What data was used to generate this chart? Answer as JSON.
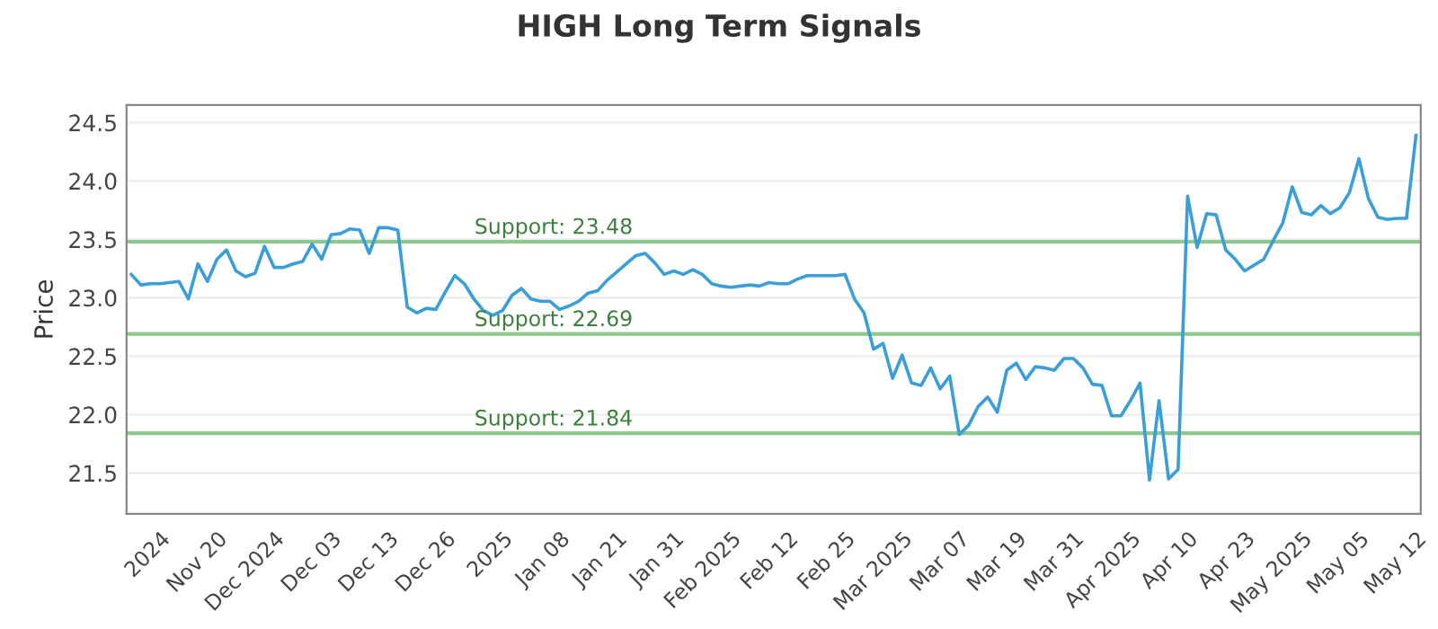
{
  "chart_data": {
    "type": "line",
    "title": "HIGH Long Term Signals",
    "ylabel": "Price",
    "categories": [
      null,
      null,
      null,
      "2024",
      null,
      null,
      null,
      null,
      null,
      "Nov 20",
      null,
      null,
      null,
      null,
      null,
      "Dec 2024",
      null,
      null,
      null,
      null,
      null,
      "Dec 03",
      null,
      null,
      null,
      null,
      null,
      "Dec 13",
      null,
      null,
      null,
      null,
      null,
      "Dec 26",
      null,
      null,
      null,
      null,
      null,
      "2025",
      null,
      null,
      null,
      null,
      null,
      "Jan 08",
      null,
      null,
      null,
      null,
      null,
      "Jan 21",
      null,
      null,
      null,
      null,
      null,
      "Jan 31",
      null,
      null,
      null,
      null,
      null,
      "Feb 2025",
      null,
      null,
      null,
      null,
      null,
      "Feb 12",
      null,
      null,
      null,
      null,
      null,
      "Feb 25",
      null,
      null,
      null,
      null,
      null,
      "Mar 2025",
      null,
      null,
      null,
      null,
      null,
      "Mar 07",
      null,
      null,
      null,
      null,
      null,
      "Mar 19",
      null,
      null,
      null,
      null,
      null,
      "Mar 31",
      null,
      null,
      null,
      null,
      null,
      "Apr 2025",
      null,
      null,
      null,
      null,
      null,
      "Apr 10",
      null,
      null,
      null,
      null,
      null,
      "Apr 23",
      null,
      null,
      null,
      null,
      null,
      "May 2025",
      null,
      null,
      null,
      null,
      null,
      "May 05",
      null,
      null,
      null,
      null,
      null,
      "May 12"
    ],
    "series": [
      {
        "color": "#3a9fd8",
        "values": [
          23.2,
          23.11,
          23.12,
          23.12,
          23.13,
          23.14,
          22.99,
          23.29,
          23.14,
          23.33,
          23.41,
          23.23,
          23.18,
          23.21,
          23.44,
          23.26,
          23.26,
          23.29,
          23.31,
          23.46,
          23.33,
          23.54,
          23.55,
          23.59,
          23.58,
          23.38,
          23.6,
          23.6,
          23.58,
          22.92,
          22.87,
          22.91,
          22.9,
          23.05,
          23.19,
          23.12,
          22.99,
          22.89,
          22.85,
          22.89,
          23.02,
          23.08,
          22.99,
          22.97,
          22.97,
          22.9,
          22.93,
          22.97,
          23.04,
          23.06,
          23.15,
          23.22,
          23.29,
          23.36,
          23.38,
          23.3,
          23.2,
          23.23,
          23.2,
          23.24,
          23.2,
          23.12,
          23.1,
          23.09,
          23.1,
          23.11,
          23.1,
          23.13,
          23.12,
          23.12,
          23.16,
          23.19,
          23.19,
          23.19,
          23.19,
          23.2,
          22.99,
          22.87,
          22.56,
          22.61,
          22.31,
          22.51,
          22.27,
          22.25,
          22.4,
          22.22,
          22.33,
          21.83,
          21.91,
          22.07,
          22.15,
          22.02,
          22.38,
          22.44,
          22.3,
          22.41,
          22.4,
          22.38,
          22.48,
          22.48,
          22.4,
          22.26,
          22.25,
          21.99,
          21.99,
          22.12,
          22.27,
          21.44,
          22.12,
          21.45,
          21.53,
          23.87,
          23.43,
          23.72,
          23.71,
          23.41,
          23.33,
          23.23,
          23.28,
          23.33,
          23.49,
          23.64,
          23.95,
          23.73,
          23.71,
          23.79,
          23.72,
          23.77,
          23.9,
          24.19,
          23.85,
          23.69,
          23.67,
          23.68,
          23.68,
          24.39
        ]
      }
    ],
    "ylim": [
      21.15,
      24.65
    ],
    "yticks": [
      21.5,
      {
        "value": 22,
        "label": "22.0"
      },
      22.5,
      {
        "value": 23,
        "label": "23.0"
      },
      23.5,
      {
        "value": 24,
        "label": "24.0"
      },
      24.5
    ],
    "grid": "y",
    "ref_lines": [
      {
        "axis": "y",
        "value": 23.48,
        "label": "Support: 23.48",
        "color": "#8cc98c"
      },
      {
        "axis": "y",
        "value": 22.69,
        "label": "Support: 22.69",
        "color": "#8cc98c"
      },
      {
        "axis": "y",
        "value": 21.84,
        "label": "Support: 21.84",
        "color": "#8cc98c"
      }
    ]
  }
}
